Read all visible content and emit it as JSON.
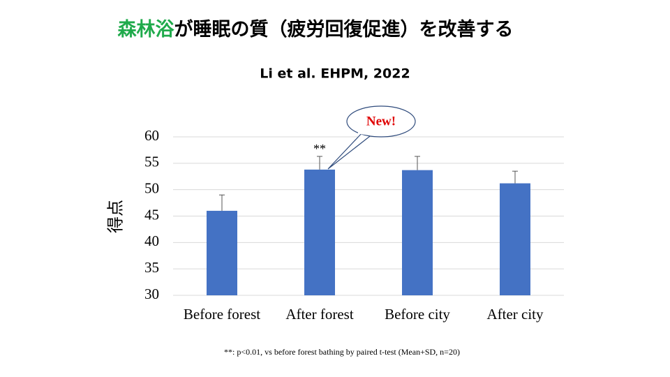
{
  "title": {
    "highlight": "森林浴",
    "rest": "が睡眠の質（疲労回復促進）を改善する"
  },
  "subtitle": "Li et al. EHPM, 2022",
  "chart_data": {
    "type": "bar",
    "ylabel": "得点",
    "categories": [
      "Before forest",
      "After forest",
      "Before city",
      "After city"
    ],
    "values": [
      46,
      53.8,
      53.7,
      51.2
    ],
    "errors": [
      3.0,
      2.5,
      2.6,
      2.3
    ],
    "color": "#4472c4",
    "ylim": [
      30,
      60
    ],
    "yticks": [
      30,
      35,
      40,
      45,
      50,
      55,
      60
    ],
    "grid": true,
    "significance": {
      "index": 1,
      "label": "**"
    },
    "callout": {
      "index": 1,
      "label": "New!"
    },
    "footnote": "**: p<0.01, vs before forest bathing by paired t-test (Mean+SD, n=20)"
  }
}
